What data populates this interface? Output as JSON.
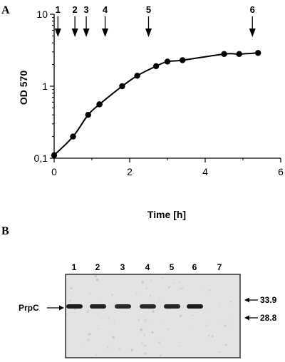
{
  "panel_a": {
    "letter": "A"
  },
  "panel_b": {
    "letter": "B"
  },
  "chart_data": {
    "type": "line",
    "xlabel": "Time [h]",
    "ylabel": "OD 570",
    "xlim": [
      0,
      6
    ],
    "ylim": [
      0.1,
      10
    ],
    "yscale": "log",
    "x_ticks": [
      "0",
      "2",
      "4",
      "6"
    ],
    "y_ticks": [
      "0,1",
      "1",
      "10"
    ],
    "grid": false,
    "series": [
      {
        "x": [
          0.0,
          0.5,
          0.9,
          1.2,
          1.2,
          1.8,
          2.2,
          2.7,
          3.0,
          3.4,
          4.5,
          4.9,
          5.4
        ],
        "y": [
          0.11,
          0.2,
          0.4,
          0.56,
          0.56,
          1.0,
          1.4,
          1.9,
          2.2,
          2.3,
          2.8,
          2.8,
          2.9
        ]
      }
    ],
    "sampling_arrows": [
      {
        "label": "1",
        "x": 0.1
      },
      {
        "label": "2",
        "x": 0.55
      },
      {
        "label": "3",
        "x": 0.85
      },
      {
        "label": "4",
        "x": 1.35
      },
      {
        "label": "5",
        "x": 2.5
      },
      {
        "label": "6",
        "x": 5.25
      }
    ]
  },
  "blot": {
    "lanes": [
      "1",
      "2",
      "3",
      "4",
      "5",
      "6",
      "7"
    ],
    "band_intensity": [
      1.0,
      0.95,
      0.85,
      0.85,
      0.9,
      1.0,
      0.0
    ],
    "protein_label": "PrpC",
    "markers": [
      {
        "label": "33.9"
      },
      {
        "label": "28.8"
      }
    ],
    "colors": {
      "membrane": "#e3e3e3",
      "band": "#1c1c1c"
    }
  }
}
